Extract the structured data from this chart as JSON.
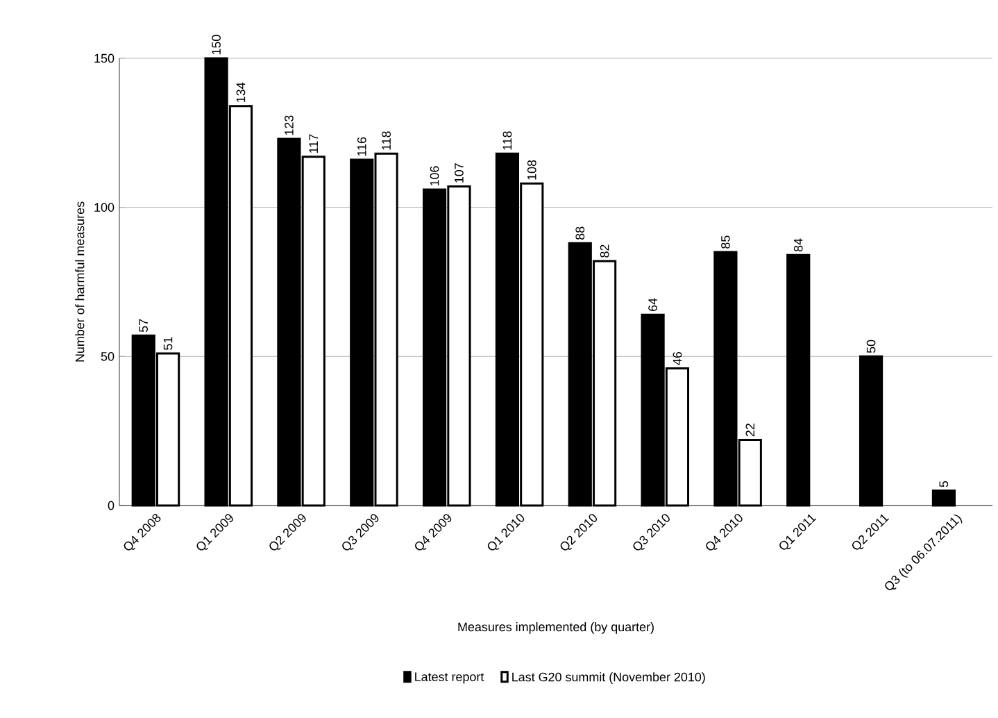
{
  "chart_data": {
    "type": "bar",
    "xlabel": "Measures implemented (by quarter)",
    "ylabel": "Number of harmful measures",
    "categories": [
      "Q4 2008",
      "Q1 2009",
      "Q2 2009",
      "Q3 2009",
      "Q4 2009",
      "Q1 2010",
      "Q2 2010",
      "Q3 2010",
      "Q4 2010",
      "Q1 2011",
      "Q2 2011",
      "Q3 (to 06.07.2011)"
    ],
    "series": [
      {
        "name": "Latest report",
        "color": "#000000",
        "values": [
          57,
          150,
          123,
          116,
          106,
          118,
          88,
          64,
          85,
          84,
          50,
          5
        ]
      },
      {
        "name": "Last G20 summit (November 2010)",
        "color": "#ffffff",
        "values": [
          51,
          134,
          117,
          118,
          107,
          108,
          82,
          46,
          22,
          null,
          null,
          null
        ]
      }
    ],
    "ylim": [
      0,
      150
    ],
    "yticks": [
      0,
      50,
      100,
      150
    ],
    "grid": "y",
    "legend": "bottom",
    "data_labels": true
  }
}
